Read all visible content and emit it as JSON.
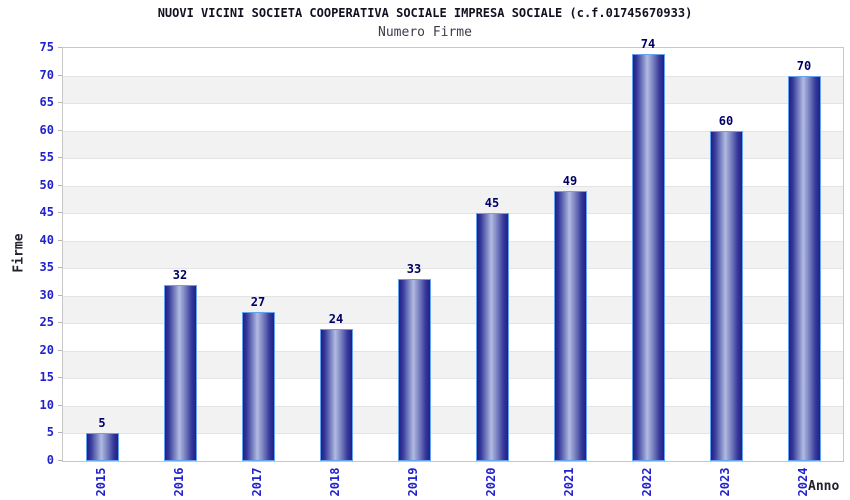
{
  "chart_data": {
    "type": "bar",
    "title": "NUOVI VICINI SOCIETA COOPERATIVA SOCIALE IMPRESA SOCIALE (c.f.01745670933)",
    "subtitle": "Numero Firme",
    "xlabel": "Anno",
    "ylabel": "Firme",
    "categories": [
      "2015",
      "2016",
      "2017",
      "2018",
      "2019",
      "2020",
      "2021",
      "2022",
      "2023",
      "2024"
    ],
    "values": [
      5,
      32,
      27,
      24,
      33,
      45,
      49,
      74,
      60,
      70
    ],
    "ylim": [
      0,
      75
    ],
    "ytick_step": 5,
    "grid": "alternating horizontal bands every 5 units, white and light gray",
    "legend": "none",
    "bar_value_labels_shown": true
  },
  "colors": {
    "background": "#ffffff",
    "title_text": "#111122",
    "subtitle_text": "#3d3d4d",
    "axis_label_text": "#22222e",
    "tick_label_blue": "#2222cc",
    "bar_value_navy": "#000066",
    "band_white": "#ffffff",
    "band_gray": "#f2f2f2",
    "gridline": "#e4e4e4",
    "plot_border": "#c8c8c8",
    "bar_outline": "#66a3ee",
    "bar_gradient_stops": [
      "#1f2086",
      "#35389a",
      "#7b84c2",
      "#b2bae0",
      "#7b84c2",
      "#35389a",
      "#1f2086"
    ],
    "bar_gradient_positions": [
      0,
      12,
      32,
      46,
      64,
      86,
      100
    ]
  }
}
